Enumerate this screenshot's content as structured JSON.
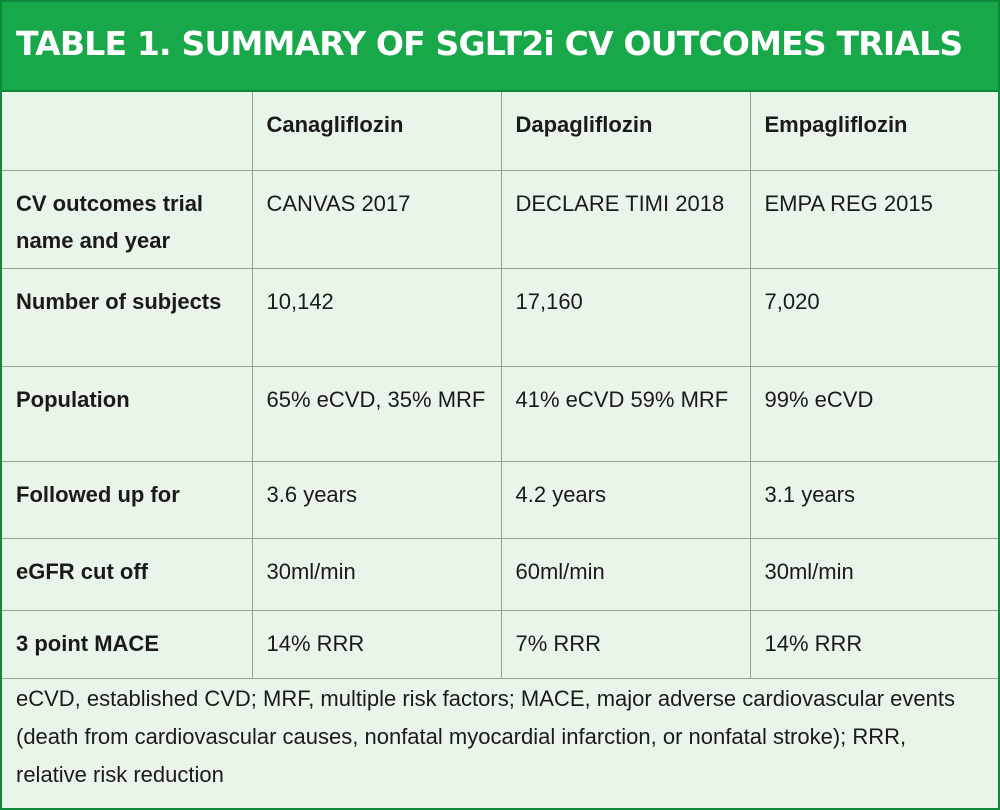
{
  "title": "TABLE 1. SUMMARY OF SGLT2i CV OUTCOMES TRIALS",
  "columns": [
    "",
    "Canagliflozin",
    "Dapagliflozin",
    "Empagliflozin"
  ],
  "rows": [
    {
      "label": "CV outcomes trial name and year",
      "values": [
        "CANVAS 2017",
        "DECLARE TIMI 2018",
        "EMPA REG 2015"
      ]
    },
    {
      "label": "Number of subjects",
      "values": [
        "10,142",
        "17,160",
        "7,020"
      ]
    },
    {
      "label": "Population",
      "values": [
        "65% eCVD, 35% MRF",
        "41% eCVD 59% MRF",
        "99% eCVD"
      ]
    },
    {
      "label": "Followed up for",
      "values": [
        "3.6 years",
        "4.2 years",
        "3.1 years"
      ]
    },
    {
      "label": "eGFR cut off",
      "values": [
        "30ml/min",
        "60ml/min",
        "30ml/min"
      ]
    },
    {
      "label": "3 point MACE",
      "values": [
        "14% RRR",
        "7% RRR",
        "14% RRR"
      ]
    }
  ],
  "footnote": "eCVD, established CVD; MRF, multiple risk factors; MACE, major adverse cardiovascular events (death from cardiovascular causes, nonfatal myocardial infarction, or nonfatal stroke); RRR, relative risk reduction",
  "colors": {
    "title_bg": "#18a84a",
    "title_text": "#ffffff",
    "body_bg": "#eaf5ea",
    "grid": "#8fa58f"
  }
}
